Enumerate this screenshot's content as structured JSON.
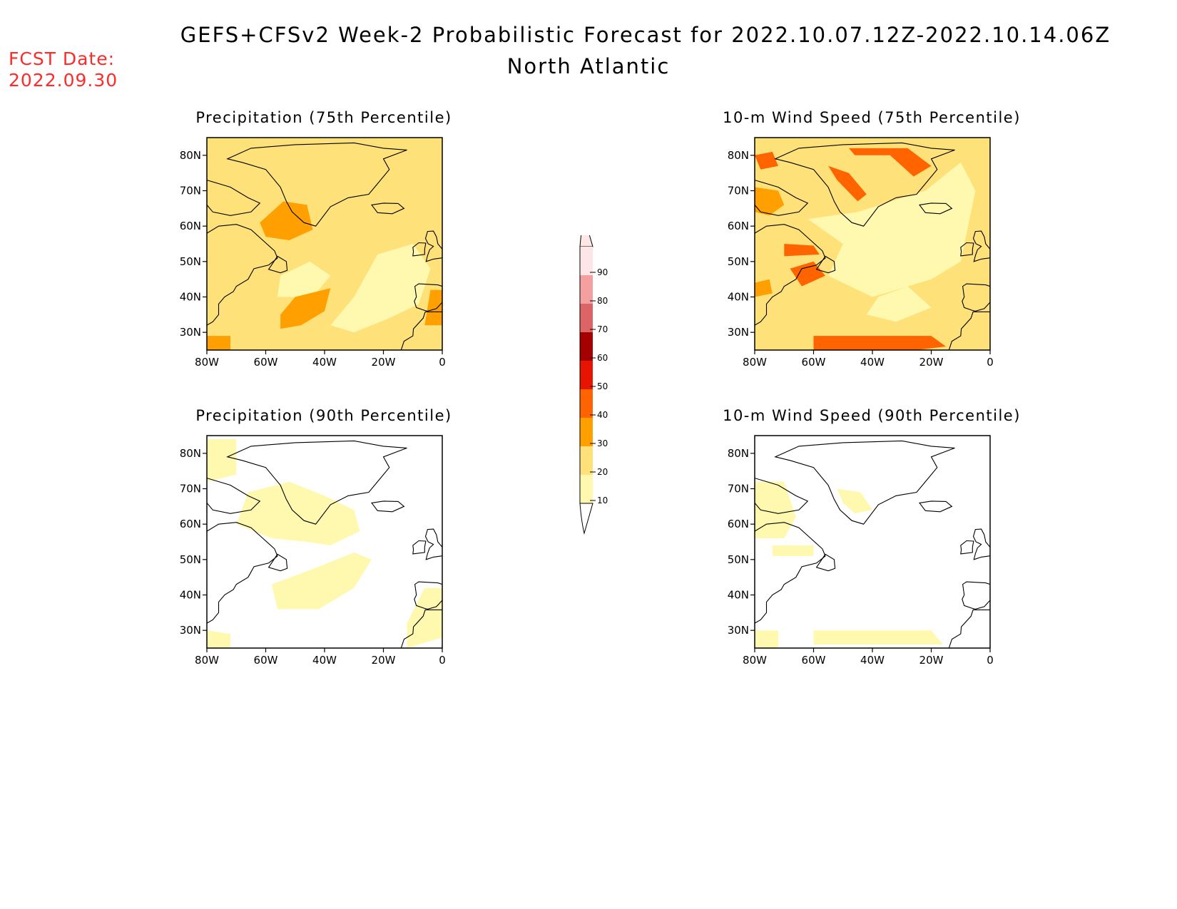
{
  "header": {
    "title": "GEFS+CFSv2 Week-2 Probabilistic Forecast for 2022.10.07.12Z-2022.10.14.06Z",
    "subtitle": "North Atlantic",
    "fcst_label": "FCST Date:",
    "fcst_date": "2022.09.30"
  },
  "panels": [
    {
      "id": "precip75",
      "title": "Precipitation (75th Percentile)"
    },
    {
      "id": "wind75",
      "title": "10-m Wind Speed (75th Percentile)"
    },
    {
      "id": "precip90",
      "title": "Precipitation (90th Percentile)"
    },
    {
      "id": "wind90",
      "title": "10-m Wind Speed (90th Percentile)"
    }
  ],
  "axes": {
    "lat_labels": [
      "80N",
      "70N",
      "60N",
      "50N",
      "40N",
      "30N"
    ],
    "lat_values": [
      80,
      70,
      60,
      50,
      40,
      30
    ],
    "lon_labels": [
      "80W",
      "60W",
      "40W",
      "20W",
      "0"
    ],
    "lon_values": [
      -80,
      -60,
      -40,
      -20,
      0
    ],
    "lon_range": [
      -80,
      0
    ],
    "lat_range": [
      25,
      85
    ]
  },
  "colorbar": {
    "labels": [
      "10",
      "20",
      "30",
      "40",
      "50",
      "60",
      "70",
      "80",
      "90"
    ],
    "colors": [
      "#fff9b0",
      "#ffe17a",
      "#ffa000",
      "#ff6400",
      "#e61400",
      "#a50000",
      "#dc6464",
      "#f5a0a0",
      "#ffe6e6"
    ]
  }
}
